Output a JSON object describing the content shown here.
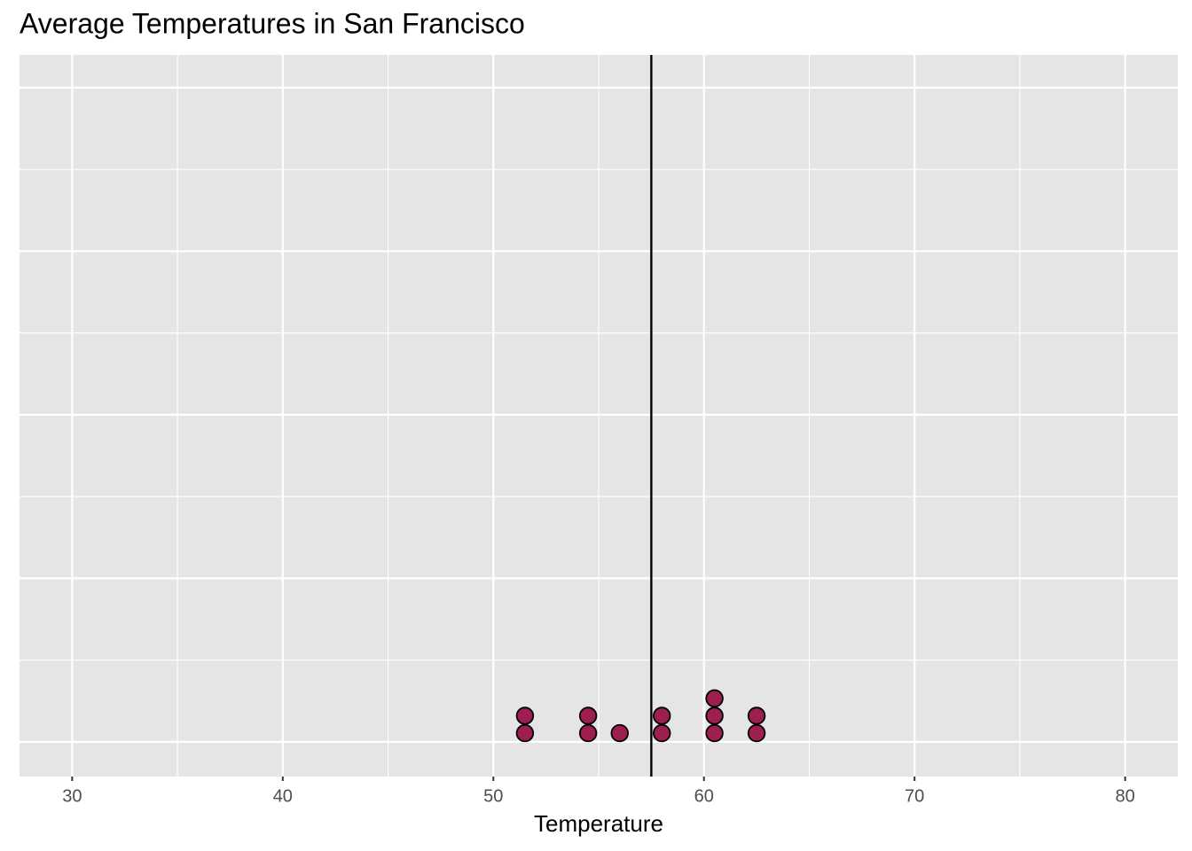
{
  "chart_data": {
    "type": "dotplot",
    "title": "Average Temperatures in San Francisco",
    "x_label": "Temperature",
    "values": [
      51.5,
      51.5,
      54.5,
      54.5,
      56,
      58,
      58,
      60.5,
      60.5,
      60.5,
      62.5,
      62.5
    ],
    "color": "#9e1f4f",
    "vline": 57.5,
    "xlim": [
      27.5,
      82.5
    ],
    "xticks": [
      30,
      40,
      50,
      60,
      70,
      80
    ],
    "ylim": [
      -0.053,
      1.05
    ],
    "yticks": [
      0,
      0.25,
      0.5,
      0.75,
      1
    ],
    "grid": true
  }
}
